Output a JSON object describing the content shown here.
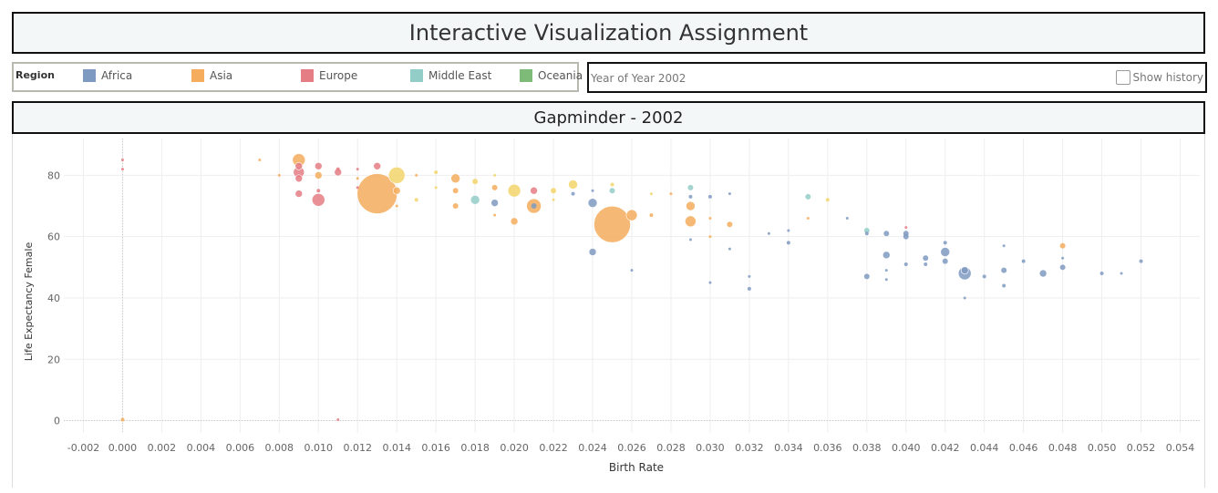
{
  "header": {
    "title": "Interactive Visualization Assignment"
  },
  "legend": {
    "title": "Region",
    "items": [
      {
        "label": "Africa",
        "color": "#7f9ac1"
      },
      {
        "label": "Asia",
        "color": "#f5ad5d"
      },
      {
        "label": "Europe",
        "color": "#e57d85"
      },
      {
        "label": "Middle East",
        "color": "#93cdc8"
      },
      {
        "label": "Oceania",
        "color": "#7fbb78"
      }
    ]
  },
  "year_filter": {
    "label": "Year of Year 2002",
    "history_label": "Show history"
  },
  "chart_data": {
    "type": "scatter",
    "title": "Gapminder - 2002",
    "xlabel": "Birth Rate",
    "ylabel": "Life Expectancy Female",
    "xlim": [
      -0.003,
      0.055
    ],
    "ylim": [
      -4,
      92
    ],
    "xticks": [
      -0.002,
      0.0,
      0.002,
      0.004,
      0.006,
      0.008,
      0.01,
      0.012,
      0.014,
      0.016,
      0.018,
      0.02,
      0.022,
      0.024,
      0.026,
      0.028,
      0.03,
      0.032,
      0.034,
      0.036,
      0.038,
      0.04,
      0.042,
      0.044,
      0.046,
      0.048,
      0.05,
      0.052,
      0.054
    ],
    "xtick_labels": [
      "-0.002",
      "0.000",
      "0.002",
      "0.004",
      "0.006",
      "0.008",
      "0.010",
      "0.012",
      "0.014",
      "0.016",
      "0.018",
      "0.020",
      "0.022",
      "0.024",
      "0.026",
      "0.028",
      "0.030",
      "0.032",
      "0.034",
      "0.036",
      "0.038",
      "0.040",
      "0.042",
      "0.044",
      "0.046",
      "0.048",
      "0.050",
      "0.052",
      "0.054"
    ],
    "yticks": [
      0,
      20,
      40,
      60,
      80
    ],
    "ytick_labels": [
      "0",
      "20",
      "40",
      "60",
      "80"
    ],
    "grid": true,
    "point_colors": {
      "Africa": "#7f9ac1",
      "Asia": "#f5ad5d",
      "Europe": "#e57d85",
      "Middle East": "#93cdc8",
      "Oceania": "#7fbb78",
      "Americas": "#f2d56b"
    },
    "points": [
      {
        "x": 0.0,
        "y": 85,
        "r": 1.5,
        "region": "Europe"
      },
      {
        "x": 0.0,
        "y": 82,
        "r": 1.5,
        "region": "Europe"
      },
      {
        "x": 0.0,
        "y": 0.3,
        "r": 2,
        "region": "Asia"
      },
      {
        "x": 0.011,
        "y": 0.3,
        "r": 1.5,
        "region": "Europe"
      },
      {
        "x": 0.007,
        "y": 85,
        "r": 1.5,
        "region": "Asia"
      },
      {
        "x": 0.008,
        "y": 80,
        "r": 1.5,
        "region": "Asia"
      },
      {
        "x": 0.009,
        "y": 85,
        "r": 7,
        "region": "Asia"
      },
      {
        "x": 0.009,
        "y": 81,
        "r": 6,
        "region": "Europe"
      },
      {
        "x": 0.009,
        "y": 83,
        "r": 4,
        "region": "Europe"
      },
      {
        "x": 0.009,
        "y": 79,
        "r": 4,
        "region": "Europe"
      },
      {
        "x": 0.009,
        "y": 74,
        "r": 4,
        "region": "Europe"
      },
      {
        "x": 0.01,
        "y": 83,
        "r": 4,
        "region": "Europe"
      },
      {
        "x": 0.01,
        "y": 80,
        "r": 4,
        "region": "Asia"
      },
      {
        "x": 0.01,
        "y": 75,
        "r": 2,
        "region": "Europe"
      },
      {
        "x": 0.01,
        "y": 72,
        "r": 7,
        "region": "Europe"
      },
      {
        "x": 0.011,
        "y": 81,
        "r": 4,
        "region": "Europe"
      },
      {
        "x": 0.011,
        "y": 82,
        "r": 2,
        "region": "Europe"
      },
      {
        "x": 0.012,
        "y": 82,
        "r": 1.5,
        "region": "Europe"
      },
      {
        "x": 0.012,
        "y": 79,
        "r": 1.5,
        "region": "Asia"
      },
      {
        "x": 0.012,
        "y": 76,
        "r": 1.5,
        "region": "Europe"
      },
      {
        "x": 0.013,
        "y": 83,
        "r": 4,
        "region": "Europe"
      },
      {
        "x": 0.013,
        "y": 74,
        "r": 22,
        "region": "Asia"
      },
      {
        "x": 0.014,
        "y": 80,
        "r": 9,
        "region": "Americas"
      },
      {
        "x": 0.014,
        "y": 75,
        "r": 4,
        "region": "Asia"
      },
      {
        "x": 0.014,
        "y": 70,
        "r": 1.5,
        "region": "Asia"
      },
      {
        "x": 0.015,
        "y": 80,
        "r": 1.5,
        "region": "Asia"
      },
      {
        "x": 0.015,
        "y": 72,
        "r": 2,
        "region": "Americas"
      },
      {
        "x": 0.016,
        "y": 81,
        "r": 2,
        "region": "Americas"
      },
      {
        "x": 0.016,
        "y": 76,
        "r": 1.5,
        "region": "Americas"
      },
      {
        "x": 0.017,
        "y": 79,
        "r": 5,
        "region": "Asia"
      },
      {
        "x": 0.017,
        "y": 75,
        "r": 3,
        "region": "Asia"
      },
      {
        "x": 0.017,
        "y": 70,
        "r": 3,
        "region": "Asia"
      },
      {
        "x": 0.018,
        "y": 78,
        "r": 3,
        "region": "Americas"
      },
      {
        "x": 0.018,
        "y": 72,
        "r": 5,
        "region": "Middle East"
      },
      {
        "x": 0.019,
        "y": 76,
        "r": 3,
        "region": "Asia"
      },
      {
        "x": 0.019,
        "y": 71,
        "r": 4,
        "region": "Africa"
      },
      {
        "x": 0.019,
        "y": 80,
        "r": 1.5,
        "region": "Americas"
      },
      {
        "x": 0.019,
        "y": 67,
        "r": 1.5,
        "region": "Asia"
      },
      {
        "x": 0.02,
        "y": 75,
        "r": 7,
        "region": "Americas"
      },
      {
        "x": 0.02,
        "y": 65,
        "r": 4,
        "region": "Asia"
      },
      {
        "x": 0.021,
        "y": 75,
        "r": 4,
        "region": "Europe"
      },
      {
        "x": 0.021,
        "y": 70,
        "r": 8,
        "region": "Asia"
      },
      {
        "x": 0.021,
        "y": 70,
        "r": 3,
        "region": "Africa"
      },
      {
        "x": 0.022,
        "y": 75,
        "r": 3,
        "region": "Americas"
      },
      {
        "x": 0.022,
        "y": 72,
        "r": 1.5,
        "region": "Americas"
      },
      {
        "x": 0.023,
        "y": 77,
        "r": 5,
        "region": "Americas"
      },
      {
        "x": 0.023,
        "y": 74,
        "r": 2,
        "region": "Africa"
      },
      {
        "x": 0.024,
        "y": 71,
        "r": 5,
        "region": "Africa"
      },
      {
        "x": 0.024,
        "y": 55,
        "r": 4,
        "region": "Africa"
      },
      {
        "x": 0.024,
        "y": 75,
        "r": 1.5,
        "region": "Africa"
      },
      {
        "x": 0.025,
        "y": 77,
        "r": 2,
        "region": "Americas"
      },
      {
        "x": 0.025,
        "y": 75,
        "r": 3,
        "region": "Middle East"
      },
      {
        "x": 0.025,
        "y": 64,
        "r": 20,
        "region": "Asia"
      },
      {
        "x": 0.026,
        "y": 67,
        "r": 6,
        "region": "Asia"
      },
      {
        "x": 0.026,
        "y": 49,
        "r": 1.5,
        "region": "Africa"
      },
      {
        "x": 0.027,
        "y": 74,
        "r": 1.5,
        "region": "Americas"
      },
      {
        "x": 0.027,
        "y": 67,
        "r": 2,
        "region": "Asia"
      },
      {
        "x": 0.028,
        "y": 74,
        "r": 1.5,
        "region": "Asia"
      },
      {
        "x": 0.029,
        "y": 76,
        "r": 3,
        "region": "Middle East"
      },
      {
        "x": 0.029,
        "y": 73,
        "r": 2,
        "region": "Africa"
      },
      {
        "x": 0.029,
        "y": 70,
        "r": 5,
        "region": "Asia"
      },
      {
        "x": 0.029,
        "y": 65,
        "r": 6,
        "region": "Asia"
      },
      {
        "x": 0.029,
        "y": 59,
        "r": 1.5,
        "region": "Africa"
      },
      {
        "x": 0.03,
        "y": 73,
        "r": 2,
        "region": "Africa"
      },
      {
        "x": 0.03,
        "y": 66,
        "r": 1.5,
        "region": "Asia"
      },
      {
        "x": 0.03,
        "y": 60,
        "r": 1.5,
        "region": "Asia"
      },
      {
        "x": 0.03,
        "y": 45,
        "r": 1.5,
        "region": "Africa"
      },
      {
        "x": 0.031,
        "y": 74,
        "r": 1.5,
        "region": "Africa"
      },
      {
        "x": 0.031,
        "y": 64,
        "r": 3,
        "region": "Asia"
      },
      {
        "x": 0.031,
        "y": 56,
        "r": 1.5,
        "region": "Africa"
      },
      {
        "x": 0.032,
        "y": 47,
        "r": 1.5,
        "region": "Africa"
      },
      {
        "x": 0.032,
        "y": 43,
        "r": 2,
        "region": "Africa"
      },
      {
        "x": 0.033,
        "y": 61,
        "r": 1.5,
        "region": "Africa"
      },
      {
        "x": 0.034,
        "y": 62,
        "r": 1.5,
        "region": "Africa"
      },
      {
        "x": 0.034,
        "y": 58,
        "r": 2,
        "region": "Africa"
      },
      {
        "x": 0.035,
        "y": 73,
        "r": 3,
        "region": "Middle East"
      },
      {
        "x": 0.035,
        "y": 66,
        "r": 1.5,
        "region": "Asia"
      },
      {
        "x": 0.036,
        "y": 72,
        "r": 2,
        "region": "Americas"
      },
      {
        "x": 0.037,
        "y": 66,
        "r": 1.5,
        "region": "Africa"
      },
      {
        "x": 0.038,
        "y": 62,
        "r": 3,
        "region": "Middle East"
      },
      {
        "x": 0.038,
        "y": 61,
        "r": 2,
        "region": "Africa"
      },
      {
        "x": 0.038,
        "y": 47,
        "r": 3,
        "region": "Africa"
      },
      {
        "x": 0.039,
        "y": 61,
        "r": 3,
        "region": "Africa"
      },
      {
        "x": 0.039,
        "y": 54,
        "r": 4,
        "region": "Africa"
      },
      {
        "x": 0.039,
        "y": 49,
        "r": 1.5,
        "region": "Africa"
      },
      {
        "x": 0.039,
        "y": 46,
        "r": 1.5,
        "region": "Africa"
      },
      {
        "x": 0.04,
        "y": 63,
        "r": 1.5,
        "region": "Europe"
      },
      {
        "x": 0.04,
        "y": 61,
        "r": 3,
        "region": "Africa"
      },
      {
        "x": 0.04,
        "y": 60,
        "r": 3,
        "region": "Africa"
      },
      {
        "x": 0.04,
        "y": 51,
        "r": 2,
        "region": "Africa"
      },
      {
        "x": 0.041,
        "y": 53,
        "r": 3,
        "region": "Africa"
      },
      {
        "x": 0.041,
        "y": 51,
        "r": 2,
        "region": "Africa"
      },
      {
        "x": 0.042,
        "y": 58,
        "r": 2,
        "region": "Africa"
      },
      {
        "x": 0.042,
        "y": 55,
        "r": 5,
        "region": "Africa"
      },
      {
        "x": 0.042,
        "y": 52,
        "r": 3,
        "region": "Africa"
      },
      {
        "x": 0.043,
        "y": 49,
        "r": 4,
        "region": "Africa"
      },
      {
        "x": 0.043,
        "y": 48,
        "r": 7,
        "region": "Africa"
      },
      {
        "x": 0.043,
        "y": 40,
        "r": 1.5,
        "region": "Africa"
      },
      {
        "x": 0.044,
        "y": 47,
        "r": 2,
        "region": "Africa"
      },
      {
        "x": 0.045,
        "y": 57,
        "r": 1.5,
        "region": "Africa"
      },
      {
        "x": 0.045,
        "y": 49,
        "r": 3,
        "region": "Africa"
      },
      {
        "x": 0.045,
        "y": 44,
        "r": 2,
        "region": "Africa"
      },
      {
        "x": 0.046,
        "y": 52,
        "r": 2,
        "region": "Africa"
      },
      {
        "x": 0.047,
        "y": 48,
        "r": 4,
        "region": "Africa"
      },
      {
        "x": 0.048,
        "y": 57,
        "r": 3,
        "region": "Asia"
      },
      {
        "x": 0.048,
        "y": 53,
        "r": 1.5,
        "region": "Africa"
      },
      {
        "x": 0.048,
        "y": 50,
        "r": 3,
        "region": "Africa"
      },
      {
        "x": 0.05,
        "y": 48,
        "r": 2,
        "region": "Africa"
      },
      {
        "x": 0.051,
        "y": 48,
        "r": 1.5,
        "region": "Africa"
      },
      {
        "x": 0.052,
        "y": 52,
        "r": 2,
        "region": "Africa"
      }
    ]
  }
}
